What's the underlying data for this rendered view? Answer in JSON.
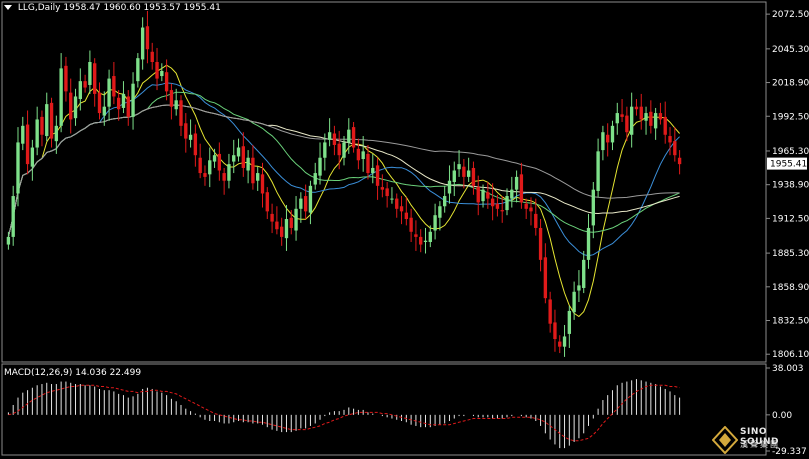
{
  "header": {
    "symbol_label": "LLG,Daily",
    "ohlc_label": "1958.47 1960.60 1953.57 1955.41"
  },
  "macd_header": {
    "label": "MACD(12,26,9) 14.036 22.499"
  },
  "watermark": {
    "brand_en": "SINO SOUND",
    "brand_cn": "漢聲集團"
  },
  "colors": {
    "background": "#000000",
    "frame": "#8c8c8c",
    "bull_candle": "#7ee08a",
    "bear_candle": "#e01a1a",
    "ma_fast": "#e6e632",
    "ma_mid": "#3b8fd9",
    "ma_slow": "#6ad07a",
    "ma_long": "#e8e8c8",
    "ma_longest": "#9a9a9a",
    "macd_signal": "#e01a1a",
    "macd_hist": "#e6e6e6",
    "current_price_box": "#ffffff"
  },
  "chart_data": [
    {
      "type": "candlestick",
      "title": "LLG,Daily",
      "ylim": [
        1800,
        2082
      ],
      "y_ticks": [
        2072.5,
        2045.3,
        2018.9,
        1992.5,
        1965.3,
        1938.9,
        1912.5,
        1885.3,
        1858.9,
        1832.5,
        1806.1
      ],
      "y_tick_labels": [
        "2072.50",
        "2045.30",
        "2018.90",
        "1992.50",
        "1965.30",
        "1938.90",
        "1912.50",
        "1885.30",
        "1858.90",
        "1832.50",
        "1806.10"
      ],
      "current_price": 1955.41,
      "current_price_label": "1955.41",
      "close": [
        1898,
        1930,
        1972,
        1985,
        1955,
        1968,
        1990,
        1978,
        2002,
        1975,
        1985,
        2030,
        2012,
        1990,
        2008,
        2020,
        2015,
        2035,
        2010,
        1995,
        2000,
        2022,
        2008,
        1998,
        2010,
        1992,
        2018,
        2038,
        2062,
        2045,
        2035,
        2022,
        2028,
        2012,
        2000,
        2005,
        1985,
        1975,
        1978,
        1962,
        1948,
        1945,
        1958,
        1962,
        1950,
        1942,
        1955,
        1962,
        1968,
        1952,
        1960,
        1940,
        1948,
        1932,
        1918,
        1910,
        1904,
        1898,
        1912,
        1905,
        1920,
        1928,
        1918,
        1938,
        1948,
        1960,
        1972,
        1980,
        1970,
        1962,
        1972,
        1982,
        1968,
        1958,
        1965,
        1948,
        1952,
        1938,
        1935,
        1930,
        1928,
        1920,
        1918,
        1912,
        1902,
        1898,
        1892,
        1895,
        1902,
        1915,
        1922,
        1930,
        1942,
        1950,
        1955,
        1945,
        1950,
        1938,
        1925,
        1935,
        1928,
        1922,
        1920,
        1918,
        1930,
        1935,
        1945,
        1925,
        1920,
        1918,
        1905,
        1880,
        1850,
        1830,
        1818,
        1812,
        1820,
        1840,
        1855,
        1860,
        1880,
        1905,
        1935,
        1965,
        1980,
        1972,
        1985,
        1995,
        1992,
        1980,
        2000,
        1998,
        1990,
        1995,
        1985,
        1995,
        1990,
        1978,
        1972,
        1962,
        1955
      ]
    },
    {
      "type": "bar",
      "title": "MACD(12,26,9)",
      "indicator_values": {
        "macd": 14.036,
        "signal": 22.499
      },
      "ylim": [
        -29.337,
        38.003
      ],
      "y_tick_labels": [
        "38.003",
        "0.00",
        "-29.337"
      ],
      "series": [
        {
          "name": "MACD",
          "values": [
            2,
            8,
            14,
            18,
            20,
            22,
            24,
            25,
            26,
            25,
            25,
            27,
            27,
            26,
            25,
            25,
            24,
            24,
            23,
            21,
            20,
            20,
            19,
            17,
            16,
            14,
            15,
            17,
            21,
            22,
            21,
            19,
            18,
            16,
            13,
            11,
            8,
            5,
            3,
            1,
            -2,
            -4,
            -5,
            -5,
            -6,
            -7,
            -7,
            -6,
            -5,
            -6,
            -6,
            -7,
            -7,
            -8,
            -10,
            -12,
            -13,
            -14,
            -14,
            -14,
            -13,
            -11,
            -11,
            -9,
            -7,
            -4,
            -1,
            2,
            3,
            3,
            4,
            6,
            5,
            4,
            4,
            2,
            1,
            0,
            -1,
            -2,
            -3,
            -4,
            -5,
            -6,
            -8,
            -9,
            -10,
            -10,
            -10,
            -9,
            -8,
            -7,
            -5,
            -3,
            -1,
            -1,
            0,
            -1,
            -2,
            -2,
            -2,
            -3,
            -3,
            -3,
            -2,
            -1,
            0,
            -1,
            -2,
            -3,
            -5,
            -9,
            -15,
            -20,
            -24,
            -27,
            -27,
            -25,
            -22,
            -19,
            -15,
            -9,
            -3,
            5,
            12,
            16,
            20,
            24,
            26,
            27,
            28,
            29,
            28,
            27,
            26,
            25,
            23,
            21,
            19,
            16,
            14
          ]
        },
        {
          "values": [
            0,
            1,
            3,
            6,
            9,
            12,
            14,
            16,
            18,
            19,
            20,
            21,
            22,
            23,
            23,
            24,
            24,
            24,
            24,
            23,
            23,
            22,
            22,
            21,
            20,
            19,
            19,
            18,
            19,
            19,
            20,
            20,
            19,
            19,
            18,
            17,
            15,
            13,
            11,
            9,
            7,
            5,
            3,
            1,
            0,
            -1,
            -2,
            -3,
            -4,
            -4,
            -5,
            -5,
            -6,
            -6,
            -7,
            -8,
            -9,
            -10,
            -11,
            -12,
            -12,
            -12,
            -12,
            -11,
            -10,
            -9,
            -7,
            -6,
            -4,
            -3,
            -1,
            0,
            1,
            2,
            2,
            2,
            2,
            2,
            1,
            1,
            0,
            -1,
            -2,
            -3,
            -4,
            -5,
            -6,
            -7,
            -8,
            -8,
            -8,
            -8,
            -8,
            -7,
            -6,
            -5,
            -4,
            -3,
            -3,
            -3,
            -3,
            -3,
            -3,
            -3,
            -3,
            -2,
            -2,
            -2,
            -2,
            -2,
            -3,
            -4,
            -6,
            -9,
            -12,
            -15,
            -18,
            -20,
            -21,
            -21,
            -20,
            -19,
            -16,
            -12,
            -7,
            -3,
            1,
            5,
            9,
            13,
            16,
            19,
            21,
            23,
            24,
            24,
            24,
            24,
            23,
            23,
            22
          ]
        }
      ]
    }
  ]
}
